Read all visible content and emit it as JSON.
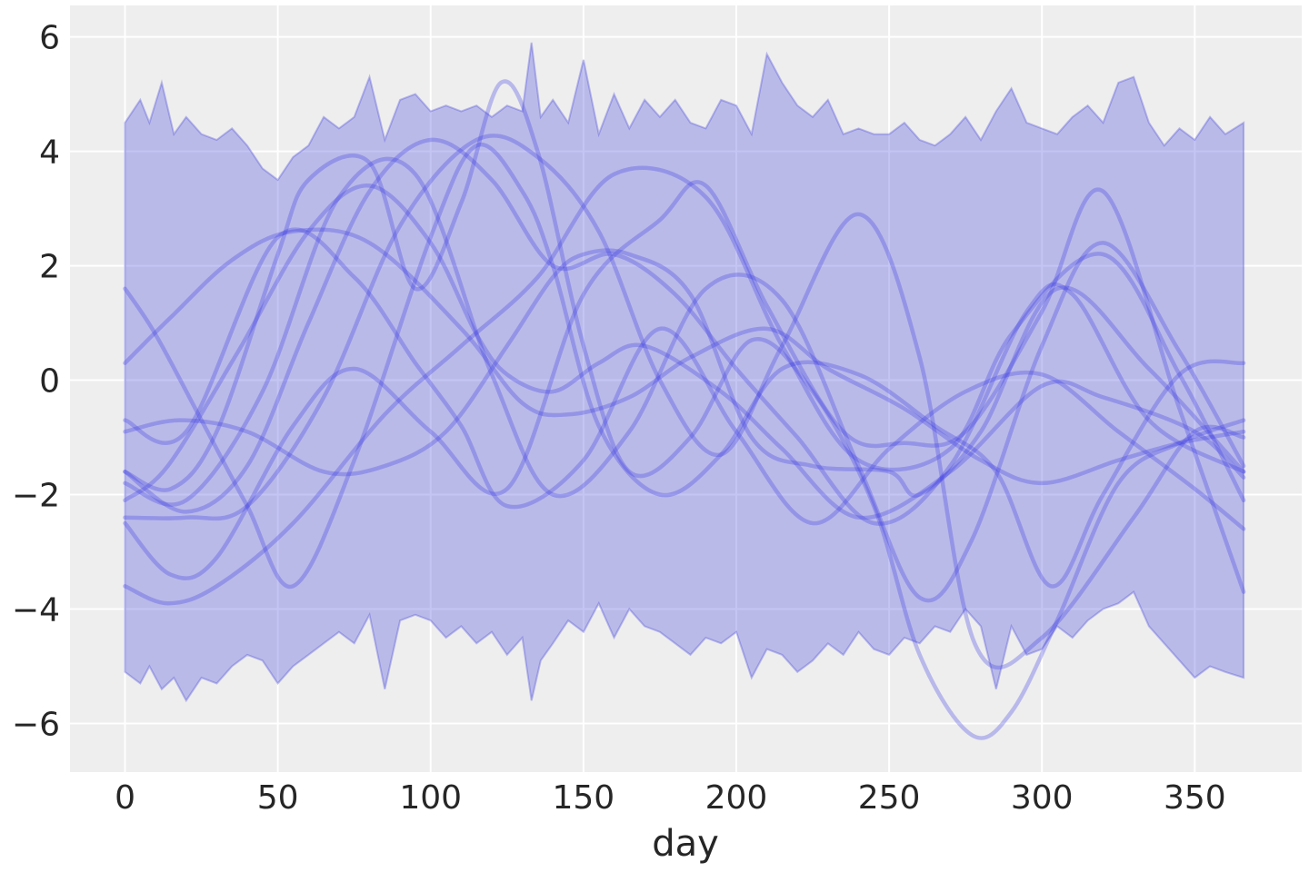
{
  "chart_data": {
    "type": "line",
    "title": "",
    "xlabel": "day",
    "ylabel": "",
    "xlim": [
      -18,
      385
    ],
    "ylim": [
      -6.85,
      6.55
    ],
    "xticks": [
      0,
      50,
      100,
      150,
      200,
      250,
      300,
      350
    ],
    "yticks": [
      -6,
      -4,
      -2,
      0,
      2,
      4,
      6
    ],
    "grid": true,
    "legend": "none",
    "colors": {
      "band": "#5858e0",
      "curves": "#3a3ae6",
      "background": "#eeeeee"
    },
    "band": {
      "x": [
        0,
        5,
        8,
        12,
        16,
        20,
        25,
        30,
        35,
        40,
        45,
        50,
        55,
        60,
        65,
        70,
        75,
        80,
        85,
        90,
        95,
        100,
        105,
        110,
        115,
        120,
        125,
        130,
        133,
        136,
        140,
        145,
        150,
        155,
        160,
        165,
        170,
        175,
        180,
        185,
        190,
        195,
        200,
        205,
        210,
        215,
        220,
        225,
        230,
        235,
        240,
        245,
        250,
        255,
        260,
        265,
        270,
        275,
        280,
        285,
        290,
        295,
        300,
        305,
        310,
        315,
        320,
        325,
        330,
        335,
        340,
        345,
        350,
        355,
        360,
        366
      ],
      "upper": [
        4.5,
        4.9,
        4.5,
        5.2,
        4.3,
        4.6,
        4.3,
        4.2,
        4.4,
        4.1,
        3.7,
        3.5,
        3.9,
        4.1,
        4.6,
        4.4,
        4.6,
        5.3,
        4.2,
        4.9,
        5.0,
        4.7,
        4.8,
        4.7,
        4.8,
        4.6,
        4.8,
        4.7,
        5.9,
        4.6,
        4.9,
        4.5,
        5.6,
        4.3,
        5.0,
        4.4,
        4.9,
        4.6,
        4.9,
        4.5,
        4.4,
        4.9,
        4.8,
        4.3,
        5.7,
        5.2,
        4.8,
        4.6,
        4.9,
        4.3,
        4.4,
        4.3,
        4.3,
        4.5,
        4.2,
        4.1,
        4.3,
        4.6,
        4.2,
        4.7,
        5.1,
        4.5,
        4.4,
        4.3,
        4.6,
        4.8,
        4.5,
        5.2,
        5.3,
        4.5,
        4.1,
        4.4,
        4.2,
        4.6,
        4.3,
        4.5
      ],
      "lower": [
        -5.1,
        -5.3,
        -5.0,
        -5.4,
        -5.2,
        -5.6,
        -5.2,
        -5.3,
        -5.0,
        -4.8,
        -4.9,
        -5.3,
        -5.0,
        -4.8,
        -4.6,
        -4.4,
        -4.6,
        -4.1,
        -5.4,
        -4.2,
        -4.1,
        -4.2,
        -4.5,
        -4.3,
        -4.6,
        -4.4,
        -4.8,
        -4.5,
        -5.6,
        -4.9,
        -4.6,
        -4.2,
        -4.4,
        -3.9,
        -4.5,
        -4.0,
        -4.3,
        -4.4,
        -4.6,
        -4.8,
        -4.5,
        -4.6,
        -4.4,
        -5.2,
        -4.7,
        -4.8,
        -5.1,
        -4.9,
        -4.6,
        -4.8,
        -4.4,
        -4.7,
        -4.8,
        -4.5,
        -4.6,
        -4.3,
        -4.4,
        -4.0,
        -4.3,
        -5.4,
        -4.3,
        -4.8,
        -4.7,
        -4.3,
        -4.5,
        -4.2,
        -4.0,
        -3.9,
        -3.7,
        -4.3,
        -4.6,
        -4.9,
        -5.2,
        -5.0,
        -5.1,
        -5.2
      ]
    },
    "series": [
      {
        "x": [
          0,
          14,
          37,
          60,
          80,
          100,
          115,
          125,
          140,
          155,
          170,
          195,
          215,
          240,
          270,
          300,
          320,
          350,
          366
        ],
        "values": [
          -2.1,
          -1.5,
          0.5,
          2.6,
          3.4,
          2.4,
          0.8,
          0.1,
          -0.2,
          0.3,
          0.6,
          -0.2,
          -1.2,
          -2.4,
          -1.6,
          -0.1,
          -0.3,
          -0.9,
          -1.7
        ]
      },
      {
        "x": [
          0,
          20,
          50,
          75,
          95,
          110,
          125,
          150,
          175,
          200,
          225,
          250,
          275,
          300,
          325,
          350,
          366
        ],
        "values": [
          -0.7,
          -0.9,
          2.5,
          1.8,
          0.3,
          -0.8,
          -2.2,
          -1.4,
          0.9,
          -0.9,
          -2.5,
          -1.2,
          -0.2,
          0.1,
          -0.9,
          -1.9,
          -2.6
        ]
      },
      {
        "x": [
          0,
          15,
          30,
          55,
          75,
          100,
          125,
          150,
          175,
          190,
          210,
          235,
          255,
          275,
          300,
          320,
          345,
          366
        ],
        "values": [
          -2.5,
          -3.4,
          -3.1,
          -0.8,
          0.2,
          -0.9,
          -1.9,
          1.5,
          2.8,
          3.4,
          1.3,
          -0.9,
          -1.1,
          -0.9,
          1.2,
          3.3,
          -0.5,
          -3.7
        ]
      },
      {
        "x": [
          0,
          20,
          40,
          60,
          80,
          100,
          120,
          140,
          160,
          180,
          200,
          220,
          245,
          270,
          295,
          310,
          335,
          366
        ],
        "values": [
          -1.6,
          -2.3,
          -1.5,
          1.0,
          3.3,
          4.2,
          3.5,
          2.0,
          2.2,
          1.5,
          0.2,
          -1.0,
          -2.5,
          -1.5,
          1.2,
          1.5,
          -0.7,
          -1.6
        ]
      },
      {
        "x": [
          0,
          14,
          30,
          55,
          85,
          110,
          135,
          160,
          190,
          215,
          240,
          270,
          290,
          320,
          345,
          366
        ],
        "values": [
          -3.6,
          -3.9,
          -3.6,
          -2.5,
          -0.6,
          0.6,
          1.8,
          3.6,
          3.2,
          0.6,
          -1.4,
          -1.2,
          0.8,
          2.2,
          0.1,
          -2.1
        ]
      },
      {
        "x": [
          0,
          10,
          25,
          40,
          55,
          75,
          100,
          115,
          130,
          140,
          155,
          175,
          195,
          215,
          240,
          265,
          285,
          303,
          320,
          345,
          366
        ],
        "values": [
          1.6,
          0.8,
          -0.7,
          -2.2,
          -3.6,
          -1.4,
          2.5,
          4.1,
          3.3,
          2.0,
          -0.8,
          -2.0,
          -1.3,
          0.2,
          0.1,
          -0.8,
          -1.6,
          -3.6,
          -2.0,
          0.1,
          0.3
        ]
      },
      {
        "x": [
          0,
          18,
          40,
          65,
          85,
          105,
          125,
          140,
          150,
          165,
          185,
          205,
          225,
          250,
          260,
          280,
          305,
          335,
          366
        ],
        "values": [
          -0.9,
          -0.7,
          -0.9,
          -1.6,
          -1.5,
          -0.9,
          0.6,
          1.8,
          2.2,
          2.2,
          1.5,
          -1.0,
          -1.5,
          -1.6,
          -2.0,
          -0.9,
          1.6,
          0.2,
          -1.6
        ]
      },
      {
        "x": [
          0,
          20,
          45,
          70,
          95,
          120,
          140,
          165,
          190,
          215,
          240,
          260,
          277,
          300,
          320,
          345,
          366
        ],
        "values": [
          -1.8,
          -2.1,
          -0.2,
          3.2,
          3.6,
          0.1,
          -2.0,
          -0.9,
          1.6,
          1.4,
          -1.5,
          -3.8,
          -2.8,
          0.6,
          2.4,
          0.5,
          -1.5
        ]
      },
      {
        "x": [
          0,
          15,
          35,
          55,
          80,
          110,
          130,
          145,
          165,
          185,
          210,
          230,
          255,
          280,
          300,
          325,
          345,
          366
        ],
        "values": [
          0.3,
          1.1,
          2.1,
          2.6,
          2.4,
          0.9,
          -0.4,
          -0.6,
          -0.3,
          0.4,
          0.9,
          0.2,
          -0.5,
          -1.4,
          -1.8,
          -1.4,
          -1.1,
          -0.9
        ]
      },
      {
        "x": [
          0,
          20,
          40,
          65,
          90,
          115,
          135,
          155,
          175,
          195,
          215,
          240,
          260,
          278,
          300,
          330,
          350,
          366
        ],
        "values": [
          -2.4,
          -2.4,
          -2.2,
          -0.3,
          2.7,
          4.2,
          3.9,
          2.6,
          0.0,
          -1.3,
          0.6,
          2.9,
          0.4,
          -4.6,
          -4.5,
          -2.4,
          -0.9,
          -1.0
        ]
      },
      {
        "x": [
          0,
          15,
          30,
          50,
          60,
          80,
          95,
          110,
          123,
          135,
          150,
          165,
          185,
          205,
          225,
          245,
          260,
          277,
          290,
          305,
          325,
          345,
          366
        ],
        "values": [
          -1.6,
          -1.9,
          -0.9,
          2.2,
          3.5,
          3.8,
          1.6,
          3.1,
          5.2,
          4.0,
          0.6,
          -1.6,
          -1.0,
          0.7,
          -0.2,
          -2.2,
          -4.8,
          -6.2,
          -5.8,
          -4.2,
          -1.8,
          -1.1,
          -0.7
        ]
      }
    ]
  }
}
